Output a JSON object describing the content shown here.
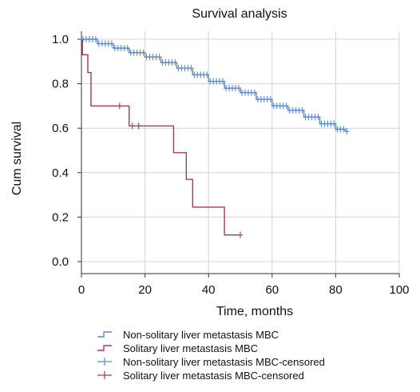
{
  "chart_data": {
    "type": "line",
    "title": "Survival analysis",
    "xlabel": "Time, months",
    "ylabel": "Cum survival",
    "xlim": [
      0,
      100
    ],
    "ylim": [
      0,
      1.0
    ],
    "x_ticks": [
      0,
      20,
      40,
      60,
      80,
      100
    ],
    "y_ticks": [
      0.0,
      0.2,
      0.4,
      0.6,
      0.8,
      1.0
    ],
    "x_tick_labels": [
      "0",
      "20",
      "40",
      "60",
      "80",
      "100"
    ],
    "y_tick_labels": [
      "0.0",
      "0.2",
      "0.4",
      "0.6",
      "0.8",
      "1.0"
    ],
    "grid": true,
    "legend_position": "bottom",
    "series": [
      {
        "name": "Non-solitary liver metastasis MBC",
        "color": "#5b8ac6",
        "style": "step",
        "points": [
          [
            0,
            1.0
          ],
          [
            5,
            0.98
          ],
          [
            10,
            0.96
          ],
          [
            15,
            0.94
          ],
          [
            20,
            0.92
          ],
          [
            25,
            0.895
          ],
          [
            30,
            0.87
          ],
          [
            35,
            0.84
          ],
          [
            40,
            0.81
          ],
          [
            45,
            0.78
          ],
          [
            50,
            0.76
          ],
          [
            55,
            0.73
          ],
          [
            60,
            0.7
          ],
          [
            65,
            0.68
          ],
          [
            70,
            0.65
          ],
          [
            75,
            0.62
          ],
          [
            80,
            0.595
          ],
          [
            83,
            0.585
          ]
        ]
      },
      {
        "name": "Solitary liver metastasis MBC",
        "color": "#a8385a",
        "style": "step",
        "points": [
          [
            0,
            1.0
          ],
          [
            0.3,
            0.93
          ],
          [
            2,
            0.85
          ],
          [
            3,
            0.7
          ],
          [
            15,
            0.61
          ],
          [
            29,
            0.49
          ],
          [
            33,
            0.37
          ],
          [
            35,
            0.245
          ],
          [
            45,
            0.12
          ],
          [
            50,
            0.12
          ]
        ]
      }
    ],
    "censored": [
      {
        "name": "Non-solitary liver metastasis MBC-censored",
        "color": "#5b8ac6",
        "x": [
          0.5,
          1.5,
          2.5,
          3.5,
          4.5,
          5.5,
          6.5,
          7.5,
          8.5,
          9.5,
          10.5,
          11.5,
          12.5,
          13.5,
          14.5,
          15.5,
          16.5,
          17.5,
          18.5,
          19.5,
          20.5,
          21.5,
          22.5,
          23.5,
          24.5,
          25.5,
          26.5,
          27.5,
          28.5,
          29.5,
          30.5,
          31.5,
          32.5,
          33.5,
          34.5,
          35.5,
          36.5,
          37.5,
          38.5,
          39.5,
          40.5,
          41.5,
          42.5,
          43.5,
          44.5,
          45.5,
          46.5,
          47.5,
          48.5,
          49.5,
          50.5,
          51.5,
          52.5,
          53.5,
          54.5,
          55.5,
          56.5,
          57.5,
          58.5,
          59.5,
          60.5,
          61.5,
          62.5,
          63.5,
          64.5,
          65.5,
          66.5,
          67.5,
          68.5,
          69.5,
          70.5,
          71.5,
          72.5,
          73.5,
          74.5,
          75.5,
          76.5,
          77.5,
          78.5,
          79.5,
          80.5,
          81.5,
          82.5,
          83.5
        ]
      },
      {
        "name": "Solitary liver metastasis MBC-censored",
        "color": "#a8385a",
        "x": [
          12,
          16,
          18,
          50
        ]
      }
    ]
  }
}
